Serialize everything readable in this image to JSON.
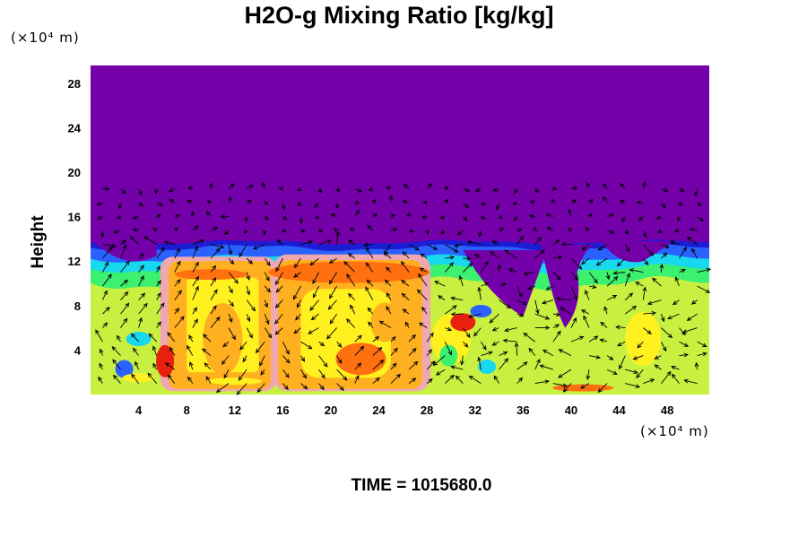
{
  "chart_data": {
    "type": "heatmap",
    "title": "H2O-g Mixing Ratio [kg/kg]",
    "ylabel": "Height",
    "xlabel": "",
    "x_unit": "(×10⁴ m)",
    "y_unit": "(×10⁴ m)",
    "footer": "TIME = 1015680.0",
    "xlim": [
      0,
      51.5
    ],
    "ylim": [
      0,
      29.6
    ],
    "x_ticks": [
      4,
      8,
      12,
      16,
      20,
      24,
      28,
      32,
      36,
      40,
      44,
      48
    ],
    "y_ticks": [
      4,
      8,
      12,
      16,
      20,
      24,
      28
    ],
    "colors": {
      "background": "#7300a8",
      "dark_blue": "#1c1cd2",
      "blue": "#2a62ff",
      "cyan": "#18d8f0",
      "green": "#3cf070",
      "yellow_green": "#c8f040",
      "yellow": "#fff020",
      "orange": "#ffb020",
      "dark_orange": "#ff7010",
      "red": "#e82010",
      "pink": "#f0a8b0",
      "arrow": "#000000"
    }
  }
}
